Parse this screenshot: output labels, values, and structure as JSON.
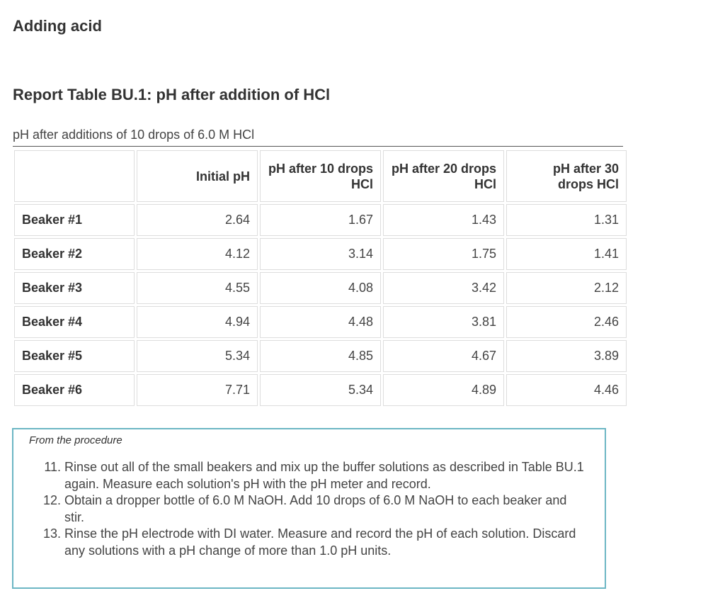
{
  "page_heading": "Adding acid",
  "table_heading": "Report Table BU.1: pH after addition of HCl",
  "caption": "pH after additions of 10 drops of 6.0 M HCl",
  "table": {
    "headers": [
      "",
      "Initial pH",
      "pH after 10 drops HCl",
      "pH after 20 drops HCl",
      "pH after 30 drops HCl"
    ],
    "rows": [
      {
        "label": "Beaker #1",
        "values": [
          "2.64",
          "1.67",
          "1.43",
          "1.31"
        ]
      },
      {
        "label": "Beaker #2",
        "values": [
          "4.12",
          "3.14",
          "1.75",
          "1.41"
        ]
      },
      {
        "label": "Beaker #3",
        "values": [
          "4.55",
          "4.08",
          "3.42",
          "2.12"
        ]
      },
      {
        "label": "Beaker #4",
        "values": [
          "4.94",
          "4.48",
          "3.81",
          "2.46"
        ]
      },
      {
        "label": "Beaker #5",
        "values": [
          "5.34",
          "4.85",
          "4.67",
          "3.89"
        ]
      },
      {
        "label": "Beaker #6",
        "values": [
          "7.71",
          "5.34",
          "4.89",
          "4.46"
        ]
      }
    ]
  },
  "procedure": {
    "title": "From the procedure",
    "start_number": 11,
    "steps": [
      "Rinse out all of the small beakers and mix up the buffer solutions as described in Table BU.1 again. Measure each solution's pH with the pH meter and record.",
      "Obtain a dropper bottle of 6.0 M NaOH. Add 10 drops of 6.0 M NaOH to each beaker and stir.",
      "Rinse the pH electrode with DI water. Measure and record the pH of each solution. Discard any solutions with a pH change of more than 1.0 pH units."
    ]
  },
  "colors": {
    "procedure_border": "#6cb6c4",
    "table_cell_border": "#dddddd",
    "text": "#333333"
  }
}
